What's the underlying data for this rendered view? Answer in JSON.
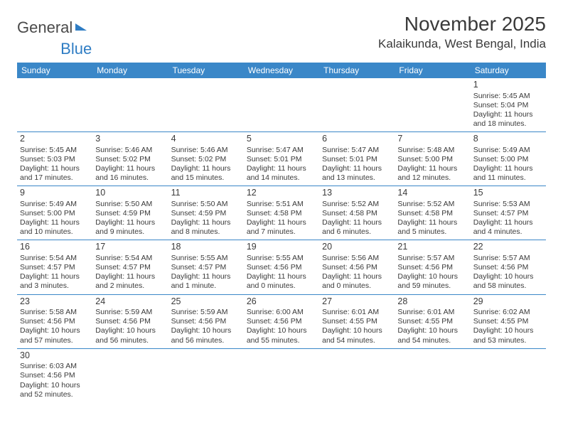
{
  "logo": {
    "text1": "General",
    "text2": "Blue"
  },
  "title": "November 2025",
  "location": "Kalaikunda, West Bengal, India",
  "colors": {
    "header_bg": "#3a87c8",
    "header_text": "#ffffff",
    "border": "#3a87c8",
    "text": "#3a3a3a",
    "logo_gray": "#4a4a4a",
    "logo_blue": "#2f7dc4",
    "background": "#ffffff"
  },
  "weekdays": [
    "Sunday",
    "Monday",
    "Tuesday",
    "Wednesday",
    "Thursday",
    "Friday",
    "Saturday"
  ],
  "weeks": [
    [
      null,
      null,
      null,
      null,
      null,
      null,
      {
        "n": "1",
        "sr": "Sunrise: 5:45 AM",
        "ss": "Sunset: 5:04 PM",
        "d1": "Daylight: 11 hours",
        "d2": "and 18 minutes."
      }
    ],
    [
      {
        "n": "2",
        "sr": "Sunrise: 5:45 AM",
        "ss": "Sunset: 5:03 PM",
        "d1": "Daylight: 11 hours",
        "d2": "and 17 minutes."
      },
      {
        "n": "3",
        "sr": "Sunrise: 5:46 AM",
        "ss": "Sunset: 5:02 PM",
        "d1": "Daylight: 11 hours",
        "d2": "and 16 minutes."
      },
      {
        "n": "4",
        "sr": "Sunrise: 5:46 AM",
        "ss": "Sunset: 5:02 PM",
        "d1": "Daylight: 11 hours",
        "d2": "and 15 minutes."
      },
      {
        "n": "5",
        "sr": "Sunrise: 5:47 AM",
        "ss": "Sunset: 5:01 PM",
        "d1": "Daylight: 11 hours",
        "d2": "and 14 minutes."
      },
      {
        "n": "6",
        "sr": "Sunrise: 5:47 AM",
        "ss": "Sunset: 5:01 PM",
        "d1": "Daylight: 11 hours",
        "d2": "and 13 minutes."
      },
      {
        "n": "7",
        "sr": "Sunrise: 5:48 AM",
        "ss": "Sunset: 5:00 PM",
        "d1": "Daylight: 11 hours",
        "d2": "and 12 minutes."
      },
      {
        "n": "8",
        "sr": "Sunrise: 5:49 AM",
        "ss": "Sunset: 5:00 PM",
        "d1": "Daylight: 11 hours",
        "d2": "and 11 minutes."
      }
    ],
    [
      {
        "n": "9",
        "sr": "Sunrise: 5:49 AM",
        "ss": "Sunset: 5:00 PM",
        "d1": "Daylight: 11 hours",
        "d2": "and 10 minutes."
      },
      {
        "n": "10",
        "sr": "Sunrise: 5:50 AM",
        "ss": "Sunset: 4:59 PM",
        "d1": "Daylight: 11 hours",
        "d2": "and 9 minutes."
      },
      {
        "n": "11",
        "sr": "Sunrise: 5:50 AM",
        "ss": "Sunset: 4:59 PM",
        "d1": "Daylight: 11 hours",
        "d2": "and 8 minutes."
      },
      {
        "n": "12",
        "sr": "Sunrise: 5:51 AM",
        "ss": "Sunset: 4:58 PM",
        "d1": "Daylight: 11 hours",
        "d2": "and 7 minutes."
      },
      {
        "n": "13",
        "sr": "Sunrise: 5:52 AM",
        "ss": "Sunset: 4:58 PM",
        "d1": "Daylight: 11 hours",
        "d2": "and 6 minutes."
      },
      {
        "n": "14",
        "sr": "Sunrise: 5:52 AM",
        "ss": "Sunset: 4:58 PM",
        "d1": "Daylight: 11 hours",
        "d2": "and 5 minutes."
      },
      {
        "n": "15",
        "sr": "Sunrise: 5:53 AM",
        "ss": "Sunset: 4:57 PM",
        "d1": "Daylight: 11 hours",
        "d2": "and 4 minutes."
      }
    ],
    [
      {
        "n": "16",
        "sr": "Sunrise: 5:54 AM",
        "ss": "Sunset: 4:57 PM",
        "d1": "Daylight: 11 hours",
        "d2": "and 3 minutes."
      },
      {
        "n": "17",
        "sr": "Sunrise: 5:54 AM",
        "ss": "Sunset: 4:57 PM",
        "d1": "Daylight: 11 hours",
        "d2": "and 2 minutes."
      },
      {
        "n": "18",
        "sr": "Sunrise: 5:55 AM",
        "ss": "Sunset: 4:57 PM",
        "d1": "Daylight: 11 hours",
        "d2": "and 1 minute."
      },
      {
        "n": "19",
        "sr": "Sunrise: 5:55 AM",
        "ss": "Sunset: 4:56 PM",
        "d1": "Daylight: 11 hours",
        "d2": "and 0 minutes."
      },
      {
        "n": "20",
        "sr": "Sunrise: 5:56 AM",
        "ss": "Sunset: 4:56 PM",
        "d1": "Daylight: 11 hours",
        "d2": "and 0 minutes."
      },
      {
        "n": "21",
        "sr": "Sunrise: 5:57 AM",
        "ss": "Sunset: 4:56 PM",
        "d1": "Daylight: 10 hours",
        "d2": "and 59 minutes."
      },
      {
        "n": "22",
        "sr": "Sunrise: 5:57 AM",
        "ss": "Sunset: 4:56 PM",
        "d1": "Daylight: 10 hours",
        "d2": "and 58 minutes."
      }
    ],
    [
      {
        "n": "23",
        "sr": "Sunrise: 5:58 AM",
        "ss": "Sunset: 4:56 PM",
        "d1": "Daylight: 10 hours",
        "d2": "and 57 minutes."
      },
      {
        "n": "24",
        "sr": "Sunrise: 5:59 AM",
        "ss": "Sunset: 4:56 PM",
        "d1": "Daylight: 10 hours",
        "d2": "and 56 minutes."
      },
      {
        "n": "25",
        "sr": "Sunrise: 5:59 AM",
        "ss": "Sunset: 4:56 PM",
        "d1": "Daylight: 10 hours",
        "d2": "and 56 minutes."
      },
      {
        "n": "26",
        "sr": "Sunrise: 6:00 AM",
        "ss": "Sunset: 4:56 PM",
        "d1": "Daylight: 10 hours",
        "d2": "and 55 minutes."
      },
      {
        "n": "27",
        "sr": "Sunrise: 6:01 AM",
        "ss": "Sunset: 4:55 PM",
        "d1": "Daylight: 10 hours",
        "d2": "and 54 minutes."
      },
      {
        "n": "28",
        "sr": "Sunrise: 6:01 AM",
        "ss": "Sunset: 4:55 PM",
        "d1": "Daylight: 10 hours",
        "d2": "and 54 minutes."
      },
      {
        "n": "29",
        "sr": "Sunrise: 6:02 AM",
        "ss": "Sunset: 4:55 PM",
        "d1": "Daylight: 10 hours",
        "d2": "and 53 minutes."
      }
    ],
    [
      {
        "n": "30",
        "sr": "Sunrise: 6:03 AM",
        "ss": "Sunset: 4:56 PM",
        "d1": "Daylight: 10 hours",
        "d2": "and 52 minutes."
      },
      null,
      null,
      null,
      null,
      null,
      null
    ]
  ]
}
